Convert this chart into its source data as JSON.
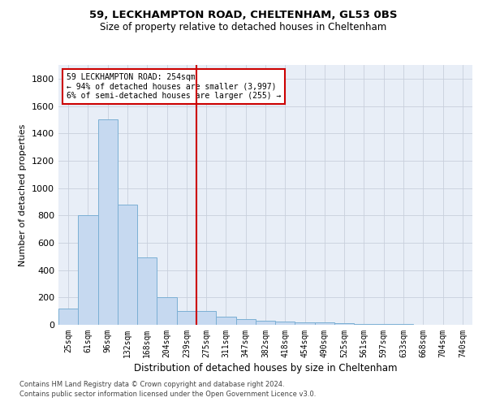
{
  "title1": "59, LECKHAMPTON ROAD, CHELTENHAM, GL53 0BS",
  "title2": "Size of property relative to detached houses in Cheltenham",
  "xlabel": "Distribution of detached houses by size in Cheltenham",
  "ylabel": "Number of detached properties",
  "footnote1": "Contains HM Land Registry data © Crown copyright and database right 2024.",
  "footnote2": "Contains public sector information licensed under the Open Government Licence v3.0.",
  "categories": [
    "25sqm",
    "61sqm",
    "96sqm",
    "132sqm",
    "168sqm",
    "204sqm",
    "239sqm",
    "275sqm",
    "311sqm",
    "347sqm",
    "382sqm",
    "418sqm",
    "454sqm",
    "490sqm",
    "525sqm",
    "561sqm",
    "597sqm",
    "633sqm",
    "668sqm",
    "704sqm",
    "740sqm"
  ],
  "values": [
    120,
    800,
    1500,
    880,
    490,
    200,
    100,
    100,
    60,
    40,
    30,
    25,
    20,
    15,
    10,
    8,
    5,
    3,
    2,
    1,
    1
  ],
  "bar_color": "#c6d9f0",
  "bar_edge_color": "#7bafd4",
  "vline_color": "#cc0000",
  "annotation_title": "59 LECKHAMPTON ROAD: 254sqm",
  "annotation_line1": "← 94% of detached houses are smaller (3,997)",
  "annotation_line2": "6% of semi-detached houses are larger (255) →",
  "annotation_box_color": "#cc0000",
  "ylim": [
    0,
    1900
  ],
  "yticks": [
    0,
    200,
    400,
    600,
    800,
    1000,
    1200,
    1400,
    1600,
    1800
  ],
  "grid_color": "#c8d0dc",
  "background_color": "#e8eef7"
}
